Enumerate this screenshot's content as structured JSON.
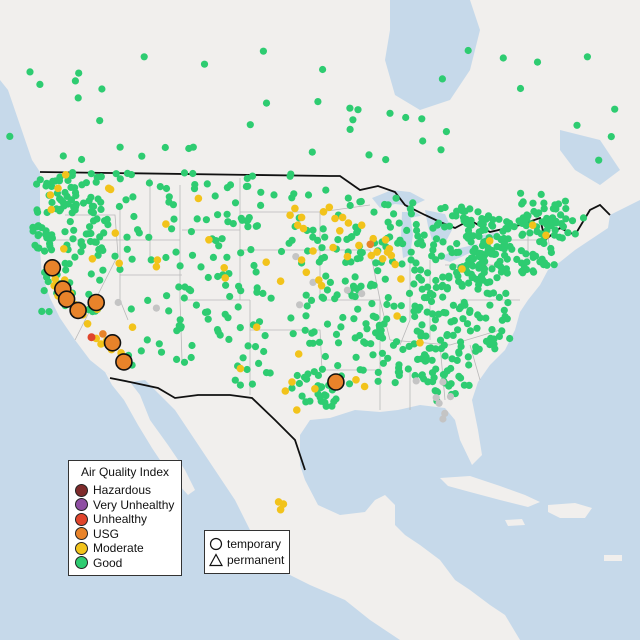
{
  "colors": {
    "ocean": "#c6d9ea",
    "land": "#f1efed",
    "land_mexico": "#ece9e4",
    "lakes": "#c6d9ea",
    "border": "#111111",
    "state_line": "#b9b9b9"
  },
  "legend": {
    "title": "Air Quality Index",
    "items": [
      {
        "label": "Hazardous",
        "color": "#7e2b2b"
      },
      {
        "label": "Very Unhealthy",
        "color": "#8f4fa3"
      },
      {
        "label": "Unhealthy",
        "color": "#e0452c"
      },
      {
        "label": "USG",
        "color": "#e8832a"
      },
      {
        "label": "Moderate",
        "color": "#f2c31b"
      },
      {
        "label": "Good",
        "color": "#2ecc71"
      }
    ]
  },
  "type_legend": {
    "items": [
      {
        "label": "temporary",
        "icon": "circle-icon"
      },
      {
        "label": "permanent",
        "icon": "triangle-icon"
      }
    ]
  },
  "markers": {
    "usg_large": [
      [
        -122.9,
        40.5
      ],
      [
        -121.8,
        38.6
      ],
      [
        -121.4,
        37.7
      ],
      [
        -120.2,
        36.7
      ],
      [
        -118.3,
        37.4
      ],
      [
        -116.6,
        33.8
      ],
      [
        -115.4,
        32.1
      ],
      [
        -93.2,
        30.3
      ]
    ],
    "unhealthy": [
      [
        -118.8,
        34.3
      ]
    ],
    "usg_small": [
      [
        -89.6,
        42.6
      ],
      [
        -117.6,
        34.6
      ]
    ],
    "grey": [
      [
        -92,
        38.5
      ],
      [
        -90.5,
        38.2
      ],
      [
        -97,
        37.2
      ],
      [
        -82.7,
        28.9
      ],
      [
        -82.4,
        28.4
      ],
      [
        -81.8,
        27.5
      ],
      [
        -82,
        27.0
      ],
      [
        -81.2,
        29.0
      ],
      [
        -82.0,
        30.3
      ],
      [
        -84.8,
        30.4
      ],
      [
        -97.4,
        41.5
      ],
      [
        -95.6,
        39.2
      ],
      [
        -112,
        36.9
      ],
      [
        -116.0,
        37.4
      ]
    ],
    "moderate": [
      [
        -122.7,
        38.9
      ],
      [
        -122.3,
        38.0
      ],
      [
        -121.0,
        38.2
      ],
      [
        -120.5,
        37.2
      ],
      [
        -119.7,
        36.3
      ],
      [
        -119.2,
        35.5
      ],
      [
        -118.3,
        34.2
      ],
      [
        -117.2,
        34.0
      ],
      [
        -116.7,
        33.2
      ],
      [
        -117.8,
        33.7
      ],
      [
        -115.7,
        32.9
      ],
      [
        -122.6,
        39.5
      ],
      [
        -121.6,
        39.4
      ],
      [
        -112.0,
        40.6
      ],
      [
        -111.9,
        41.2
      ],
      [
        -104.8,
        39.6
      ],
      [
        -104.9,
        40.5
      ],
      [
        -116.3,
        43.6
      ],
      [
        -97.5,
        45.8
      ],
      [
        -98.0,
        45.2
      ],
      [
        -96.8,
        45.0
      ],
      [
        -96.6,
        44.0
      ],
      [
        -94.5,
        45.5
      ],
      [
        -93.3,
        44.9
      ],
      [
        -92.5,
        45.0
      ],
      [
        -91.9,
        44.5
      ],
      [
        -90.5,
        44.3
      ],
      [
        -92.8,
        43.8
      ],
      [
        -95.6,
        42.0
      ],
      [
        -93.5,
        42.3
      ],
      [
        -90.8,
        42.5
      ],
      [
        -88.9,
        41.9
      ],
      [
        -87.8,
        41.9
      ],
      [
        -87.4,
        41.6
      ],
      [
        -87.0,
        40.8
      ],
      [
        -87.6,
        42.2
      ],
      [
        -89.5,
        41.6
      ],
      [
        -88.0,
        43.0
      ],
      [
        -89.3,
        43.1
      ],
      [
        -92.0,
        41.5
      ],
      [
        -95.0,
        39.4
      ],
      [
        -94.7,
        38.9
      ],
      [
        -96.3,
        40.1
      ],
      [
        -96.8,
        41.2
      ],
      [
        -97.2,
        44.3
      ],
      [
        -93.9,
        45.9
      ],
      [
        -88.3,
        41.3
      ],
      [
        -86.4,
        39.5
      ],
      [
        -100.5,
        41.0
      ],
      [
        -106.5,
        43.0
      ],
      [
        -101.5,
        35.2
      ],
      [
        -98.5,
        29.5
      ],
      [
        -97.1,
        32.8
      ],
      [
        -103.2,
        31.5
      ],
      [
        -95.4,
        29.7
      ],
      [
        -84.4,
        33.8
      ],
      [
        -80.0,
        40.4
      ],
      [
        -77.1,
        42.9
      ],
      [
        -117.0,
        47.6
      ],
      [
        -123.1,
        47.0
      ],
      [
        -122.3,
        47.6
      ],
      [
        -123.0,
        45.7
      ],
      [
        -116.8,
        47.5
      ],
      [
        -121.7,
        42.2
      ],
      [
        -118.7,
        41.3
      ],
      [
        -107.6,
        46.7
      ],
      [
        -97.8,
        30.3
      ],
      [
        -97.3,
        27.8
      ],
      [
        -111.0,
        44.4
      ],
      [
        -115.9,
        40.9
      ],
      [
        -114.5,
        35.2
      ],
      [
        -118.2,
        36.8
      ],
      [
        -99.0,
        39.3
      ],
      [
        -86.8,
        36.2
      ],
      [
        -72.6,
        44.3
      ],
      [
        -71.2,
        43.4
      ],
      [
        -90.2,
        29.9
      ],
      [
        -91.1,
        30.5
      ],
      [
        -121.5,
        48.8
      ],
      [
        -98.7,
        19.4
      ],
      [
        -99.2,
        19.6
      ],
      [
        -99.0,
        18.9
      ]
    ],
    "good_seed": 20240615,
    "good_regions": [
      {
        "lon": [
          -125,
          -117
        ],
        "lat": [
          42,
          49
        ],
        "n": 95
      },
      {
        "lon": [
          -124,
          -118
        ],
        "lat": [
          36,
          42
        ],
        "n": 30
      },
      {
        "lon": [
          -118,
          -104
        ],
        "lat": [
          36,
          49
        ],
        "n": 75
      },
      {
        "lon": [
          -115,
          -104
        ],
        "lat": [
          31.5,
          36
        ],
        "n": 20
      },
      {
        "lon": [
          -104,
          -94
        ],
        "lat": [
          30,
          49
        ],
        "n": 90
      },
      {
        "lon": [
          -94,
          -84
        ],
        "lat": [
          30,
          47
        ],
        "n": 150
      },
      {
        "lon": [
          -84,
          -75
        ],
        "lat": [
          33,
          46
        ],
        "n": 170
      },
      {
        "lon": [
          -80,
          -70
        ],
        "lat": [
          40,
          45
        ],
        "n": 90
      },
      {
        "lon": [
          -74,
          -67
        ],
        "lat": [
          43,
          47.2
        ],
        "n": 40
      },
      {
        "lon": [
          -84,
          -79
        ],
        "lat": [
          28.5,
          33
        ],
        "n": 35
      },
      {
        "lon": [
          -98,
          -93
        ],
        "lat": [
          28,
          31
        ],
        "n": 25
      },
      {
        "lon": [
          -130,
          -64
        ],
        "lat": [
          50,
          60
        ],
        "n": 45
      }
    ]
  }
}
